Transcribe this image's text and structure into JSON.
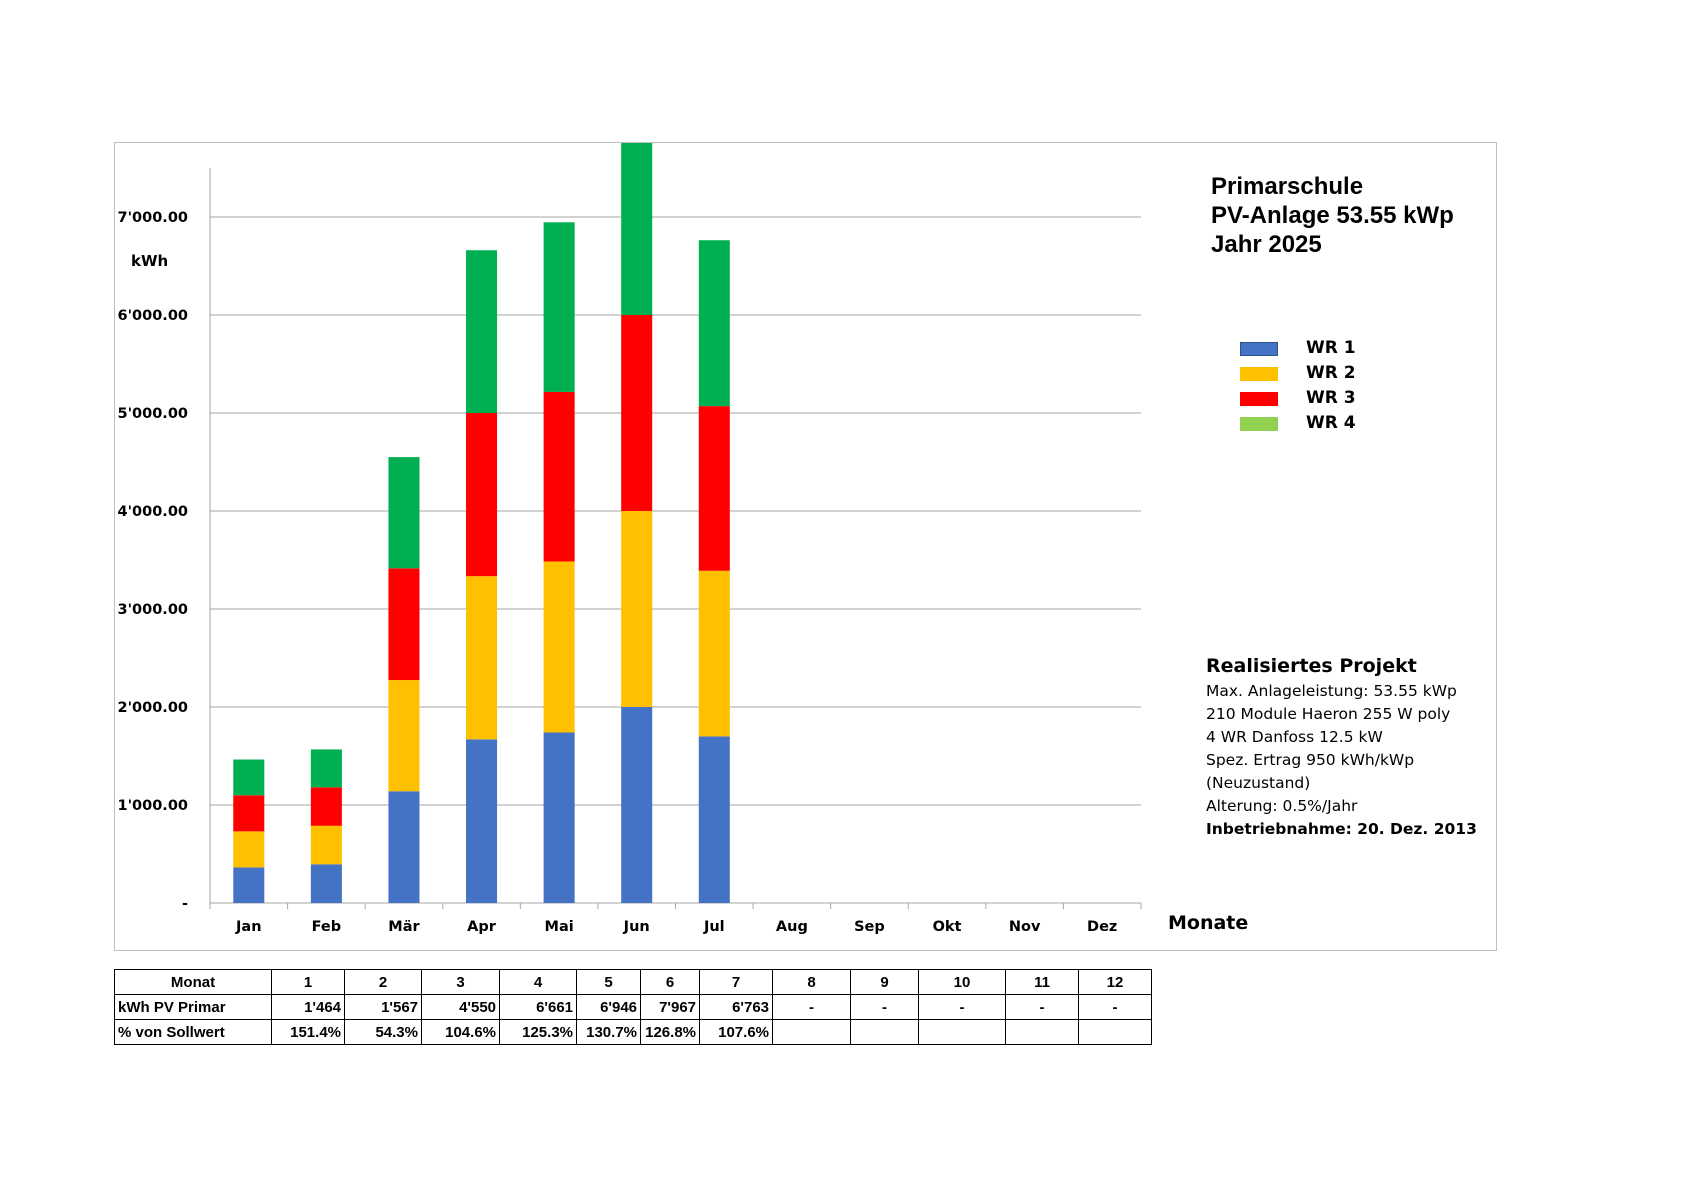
{
  "chart_data": {
    "type": "bar",
    "stacked": true,
    "title_lines": [
      "Primarschule",
      "PV-Anlage 53.55 kWp",
      "Jahr 2025"
    ],
    "ylabel": "kWh",
    "xlabel": "Monate",
    "categories": [
      "Jan",
      "Feb",
      "Mär",
      "Apr",
      "Mai",
      "Jun",
      "Jul",
      "Aug",
      "Sep",
      "Okt",
      "Nov",
      "Dez"
    ],
    "ylim": [
      0,
      7500
    ],
    "yticks": [
      0,
      1000,
      2000,
      3000,
      4000,
      5000,
      6000,
      7000
    ],
    "ytick_labels": [
      "-",
      "1'000.00",
      "2'000.00",
      "3'000.00",
      "4'000.00",
      "5'000.00",
      "6'000.00",
      "7'000.00"
    ],
    "grid": true,
    "legend_position": "right",
    "series": [
      {
        "name": "WR 1",
        "color": "#4472C4",
        "values": [
          363,
          395,
          1140,
          1670,
          1740,
          2000,
          1700,
          0,
          0,
          0,
          0,
          0
        ]
      },
      {
        "name": "WR 2",
        "color": "#FFC000",
        "values": [
          368,
          393,
          1135,
          1665,
          1745,
          2000,
          1690,
          0,
          0,
          0,
          0,
          0
        ]
      },
      {
        "name": "WR 3",
        "color": "#FF0000",
        "values": [
          368,
          392,
          1140,
          1665,
          1730,
          2000,
          1680,
          0,
          0,
          0,
          0,
          0
        ]
      },
      {
        "name": "WR 4",
        "color": "#00B050",
        "legend_color": "#92D050",
        "values": [
          365,
          387,
          1135,
          1661,
          1731,
          1967,
          1693,
          0,
          0,
          0,
          0,
          0
        ]
      }
    ]
  },
  "project": {
    "heading": "Realisiertes Projekt",
    "lines": [
      "Max. Anlageleistung: 53.55 kWp",
      "210 Module Haeron 255 W poly",
      "4 WR Danfoss 12.5 kW",
      "Spez. Ertrag 950 kWh/kWp",
      "(Neuzustand)",
      "Alterung: 0.5%/Jahr"
    ],
    "commissioning": "Inbetriebnahme:  20. Dez. 2013"
  },
  "table": {
    "rows": [
      {
        "label": "Monat",
        "cells": [
          "1",
          "2",
          "3",
          "4",
          "5",
          "6",
          "7",
          "8",
          "9",
          "10",
          "11",
          "12"
        ]
      },
      {
        "label": "kWh PV Primar",
        "cells": [
          "1'464",
          "1'567",
          "4'550",
          "6'661",
          "6'946",
          "7'967",
          "6'763",
          "-",
          "-",
          "-",
          "-",
          "-"
        ]
      },
      {
        "label": "% von Sollwert",
        "cells": [
          "151.4%",
          "54.3%",
          "104.6%",
          "125.3%",
          "130.7%",
          "126.8%",
          "107.6%",
          "",
          "",
          "",
          "",
          ""
        ]
      }
    ]
  }
}
